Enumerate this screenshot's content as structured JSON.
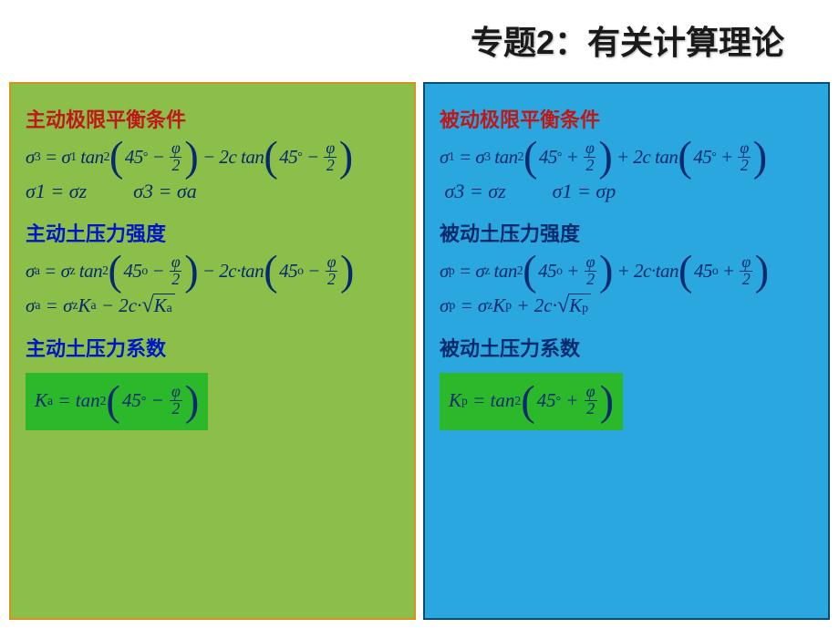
{
  "title": "专题2：有关计算理论",
  "colors": {
    "page_bg": "#ffffff",
    "panel_left_bg": "#8bbf4a",
    "panel_left_border": "#d99020",
    "panel_right_bg": "#2aa7de",
    "panel_right_border": "#0a4a73",
    "heading_red": "#c01818",
    "heading_blue": "#0015c8",
    "heading_navy": "#062a6e",
    "formula_color": "#062a6e",
    "k_box_bg": "#2bb82b"
  },
  "typography": {
    "title_fontsize": 36,
    "heading_fontsize": 22,
    "formula_fontsize": 21
  },
  "left": {
    "h1": "主动极限平衡条件",
    "eq1": {
      "lhs_sub": "3",
      "rhs1_sub": "1",
      "func1": "tan",
      "pow1": "2",
      "angle": "45",
      "deg": "°",
      "op_inside": "−",
      "frac_num": "φ",
      "frac_den": "2",
      "middle_op": "− 2",
      "cvar": "c",
      "func2": "tan"
    },
    "pair": {
      "a_l": "1",
      "a_r": "z",
      "b_l": "3",
      "b_r": "a"
    },
    "h2": "主动土压力强度",
    "eq2": {
      "lhs_sub": "a",
      "rhs1_sub": "z",
      "func1": "tan",
      "pow1": "2",
      "angle": "45",
      "deg": "o",
      "op_inside": "−",
      "frac_num": "φ",
      "frac_den": "2",
      "middle_op": "− 2",
      "cvar": "c",
      "dot": "·",
      "func2": "tan"
    },
    "eq3": {
      "lhs_sub": "a",
      "rhs1_sub": "z",
      "K": "K",
      "K_sub": "a",
      "op": "− 2",
      "cvar": "c",
      "dot": "·",
      "sqrtK": "K",
      "sqrtK_sub": "a"
    },
    "h3": "主动土压力系数",
    "eqK": {
      "K": "K",
      "K_sub": "a",
      "eq": "=",
      "func": "tan",
      "pow": "2",
      "angle": "45",
      "deg": "°",
      "op_inside": "−",
      "frac_num": "φ",
      "frac_den": "2"
    }
  },
  "right": {
    "h1": "被动极限平衡条件",
    "eq1": {
      "lhs_sub": "1",
      "rhs1_sub": "3",
      "func1": "tan",
      "pow1": "2",
      "angle": "45",
      "deg": "°",
      "op_inside": "+",
      "frac_num": "φ",
      "frac_den": "2",
      "middle_op": "+ 2",
      "cvar": "c",
      "func2": "tan"
    },
    "pair": {
      "a_l": "3",
      "a_r": "z",
      "b_l": "1",
      "b_r": "p"
    },
    "h2": "被动土压力强度",
    "eq2": {
      "lhs_sub": "p",
      "rhs1_sub": "z",
      "func1": "tan",
      "pow1": "2",
      "angle": "45",
      "deg": "o",
      "op_inside": "+",
      "frac_num": "φ",
      "frac_den": "2",
      "middle_op": "+ 2",
      "cvar": "c",
      "dot": "·",
      "func2": "tan"
    },
    "eq3": {
      "lhs_sub": "p",
      "rhs1_sub": "z",
      "K": "K",
      "K_sub": "p",
      "op": "+ 2",
      "cvar": "c",
      "dot": "·",
      "sqrtK": "K",
      "sqrtK_sub": "p"
    },
    "h3": "被动土压力系数",
    "eqK": {
      "K": "K",
      "K_sub": "p",
      "eq": "=",
      "func": "tan",
      "pow": "2",
      "angle": "45",
      "deg": "°",
      "op_inside": "+",
      "frac_num": "φ",
      "frac_den": "2"
    }
  }
}
